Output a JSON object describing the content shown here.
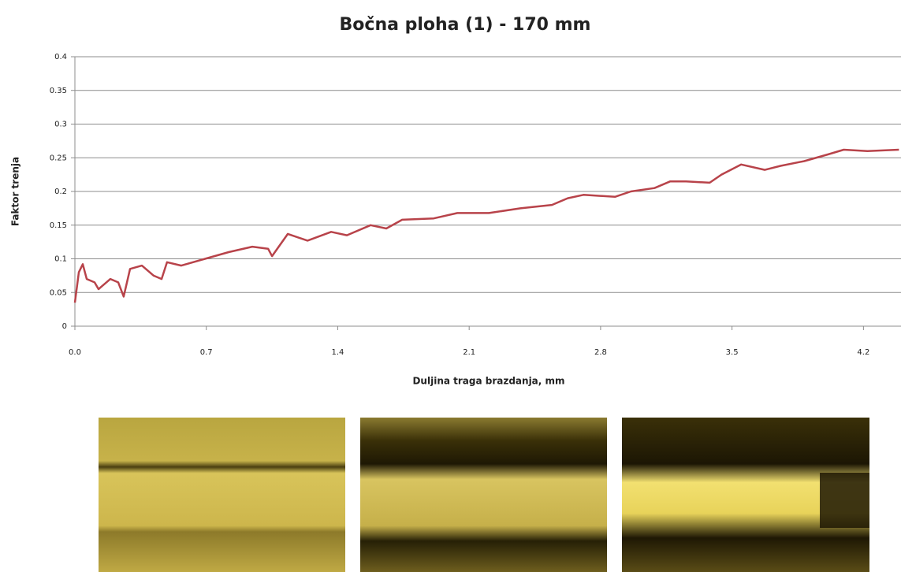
{
  "chart_data": {
    "type": "line",
    "title": "Bočna ploha (1) - 170 mm",
    "x_label": "Duljina traga brazdanja, mm",
    "y_label": "Faktor trenja",
    "color": "#b8434a",
    "grid": true,
    "xlim": [
      0,
      4.4
    ],
    "ylim": [
      0,
      0.4
    ],
    "xticks": [
      {
        "value": 0,
        "label": "0.0"
      },
      0.7,
      1.4,
      2.1,
      2.8,
      3.5,
      4.2
    ],
    "yticks": [
      0,
      0.05,
      0.1,
      0.15,
      0.2,
      0.25,
      0.3,
      0.35,
      0.4
    ],
    "x": [
      0,
      0.021,
      0.042,
      0.063,
      0.105,
      0.126,
      0.189,
      0.231,
      0.26,
      0.294,
      0.357,
      0.42,
      0.462,
      0.491,
      0.567,
      0.693,
      0.819,
      0.945,
      1.029,
      1.05,
      1.134,
      1.239,
      1.365,
      1.449,
      1.575,
      1.659,
      1.743,
      1.911,
      2.037,
      2.205,
      2.373,
      2.541,
      2.625,
      2.709,
      2.877,
      2.961,
      3.087,
      3.171,
      3.255,
      3.381,
      3.444,
      3.549,
      3.675,
      3.759,
      3.885,
      4.011,
      4.095,
      4.221,
      4.389
    ],
    "values": [
      0.035,
      0.08,
      0.092,
      0.07,
      0.065,
      0.055,
      0.07,
      0.065,
      0.044,
      0.085,
      0.09,
      0.075,
      0.07,
      0.095,
      0.09,
      0.1,
      0.11,
      0.118,
      0.115,
      0.104,
      0.137,
      0.127,
      0.14,
      0.135,
      0.15,
      0.145,
      0.158,
      0.16,
      0.168,
      0.168,
      0.175,
      0.18,
      0.19,
      0.195,
      0.192,
      0.2,
      0.205,
      0.215,
      0.215,
      0.213,
      0.225,
      0.24,
      0.232,
      0.238,
      0.245,
      0.255,
      0.262,
      0.26,
      0.262
    ]
  }
}
